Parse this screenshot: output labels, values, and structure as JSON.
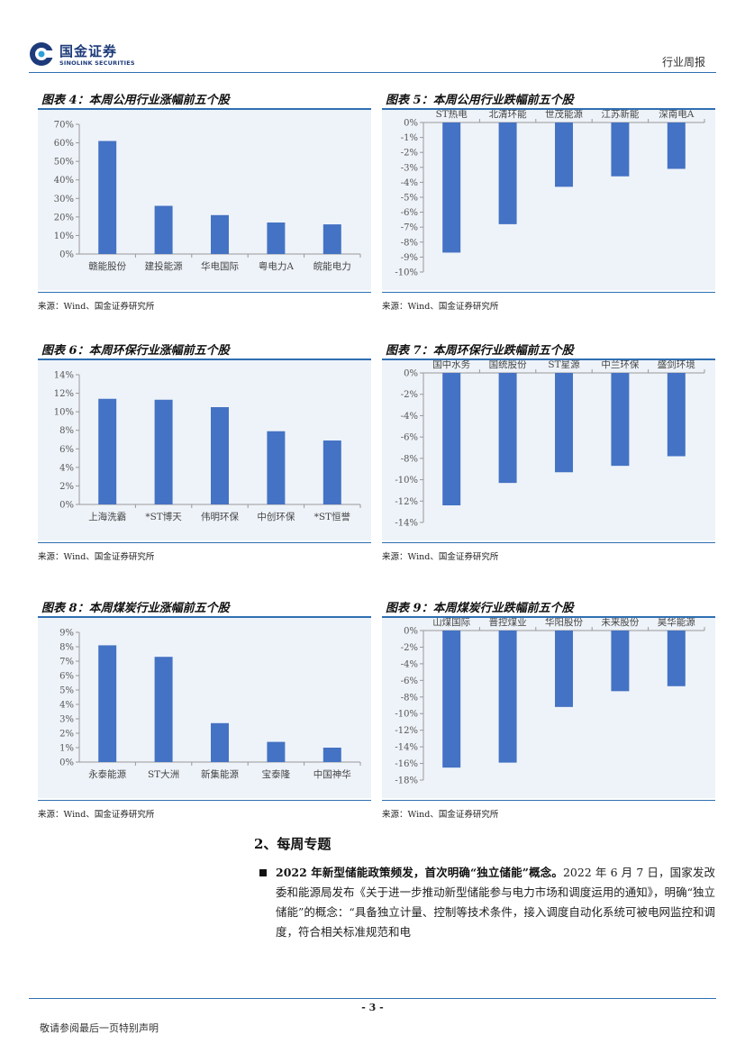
{
  "header": {
    "logo_cn": "国金证券",
    "logo_en": "SINOLINK SECURITIES",
    "doc_type": "行业周报"
  },
  "colors": {
    "bar": "#4472c4",
    "rule": "#2f6fb2",
    "panel_bg": "#eef3f9",
    "logo": "#1d3b7a"
  },
  "panels": [
    {
      "title": "图表 4：本周公用行业涨幅前五个股",
      "source": "来源：Wind、国金证券研究所",
      "chart_data": {
        "type": "bar",
        "categories": [
          "赣能股份",
          "建投能源",
          "华电国际",
          "粤电力A",
          "皖能电力"
        ],
        "values": [
          61,
          26,
          21,
          17,
          16
        ],
        "unit": "%",
        "ylim": [
          0,
          70
        ],
        "step": 10,
        "grid": false
      }
    },
    {
      "title": "图表 5：本周公用行业跌幅前五个股",
      "source": "来源：Wind、国金证券研究所",
      "chart_data": {
        "type": "bar",
        "categories": [
          "ST热电",
          "北清环能",
          "世茂能源",
          "江苏新能",
          "深南电A"
        ],
        "values": [
          -8.7,
          -6.8,
          -4.3,
          -3.6,
          -3.1
        ],
        "unit": "%",
        "ylim": [
          -10,
          0
        ],
        "step": 1,
        "grid": false
      }
    },
    {
      "title": "图表 6：本周环保行业涨幅前五个股",
      "source": "来源：Wind、国金证券研究所",
      "chart_data": {
        "type": "bar",
        "categories": [
          "上海洗霸",
          "*ST博天",
          "伟明环保",
          "中创环保",
          "*ST恒誉"
        ],
        "values": [
          11.4,
          11.3,
          10.5,
          7.9,
          6.9
        ],
        "unit": "%",
        "ylim": [
          0,
          14
        ],
        "step": 2,
        "grid": false
      }
    },
    {
      "title": "图表 7：本周环保行业跌幅前五个股",
      "source": "来源：Wind、国金证券研究所",
      "chart_data": {
        "type": "bar",
        "categories": [
          "国中水务",
          "国统股份",
          "ST星源",
          "中兰环保",
          "盛剑环境"
        ],
        "values": [
          -12.4,
          -10.3,
          -9.3,
          -8.7,
          -7.8
        ],
        "unit": "%",
        "ylim": [
          -14,
          0
        ],
        "step": 2,
        "grid": false
      }
    },
    {
      "title": "图表 8：本周煤炭行业涨幅前五个股",
      "source": "来源：Wind、国金证券研究所",
      "chart_data": {
        "type": "bar",
        "categories": [
          "永泰能源",
          "ST大洲",
          "新集能源",
          "宝泰隆",
          "中国神华"
        ],
        "values": [
          8.1,
          7.3,
          2.7,
          1.4,
          1.0
        ],
        "unit": "%",
        "ylim": [
          0,
          9
        ],
        "step": 1,
        "grid": false
      }
    },
    {
      "title": "图表 9：本周煤炭行业跌幅前五个股",
      "source": "来源：Wind、国金证券研究所",
      "chart_data": {
        "type": "bar",
        "categories": [
          "山煤国际",
          "晋控煤业",
          "华阳股份",
          "未来股份",
          "昊华能源"
        ],
        "values": [
          -16.5,
          -15.9,
          -9.2,
          -7.3,
          -6.7
        ],
        "unit": "%",
        "ylim": [
          -18,
          0
        ],
        "step": 2,
        "grid": false
      }
    }
  ],
  "section": {
    "title": "2、每周专题",
    "para_bold": "2022 年新型储能政策频发，首次明确“独立储能”概念。",
    "para_text": "2022 年 6 月 7 日，国家发改委和能源局发布《关于进一步推动新型储能参与电力市场和调度运用的通知》，明确“独立储能”的概念：“具备独立计量、控制等技术条件，接入调度自动化系统可被电网监控和调度，符合相关标准规范和电"
  },
  "footer": {
    "page_num": "- 3 -",
    "note": "敬请参阅最后一页特别声明"
  }
}
